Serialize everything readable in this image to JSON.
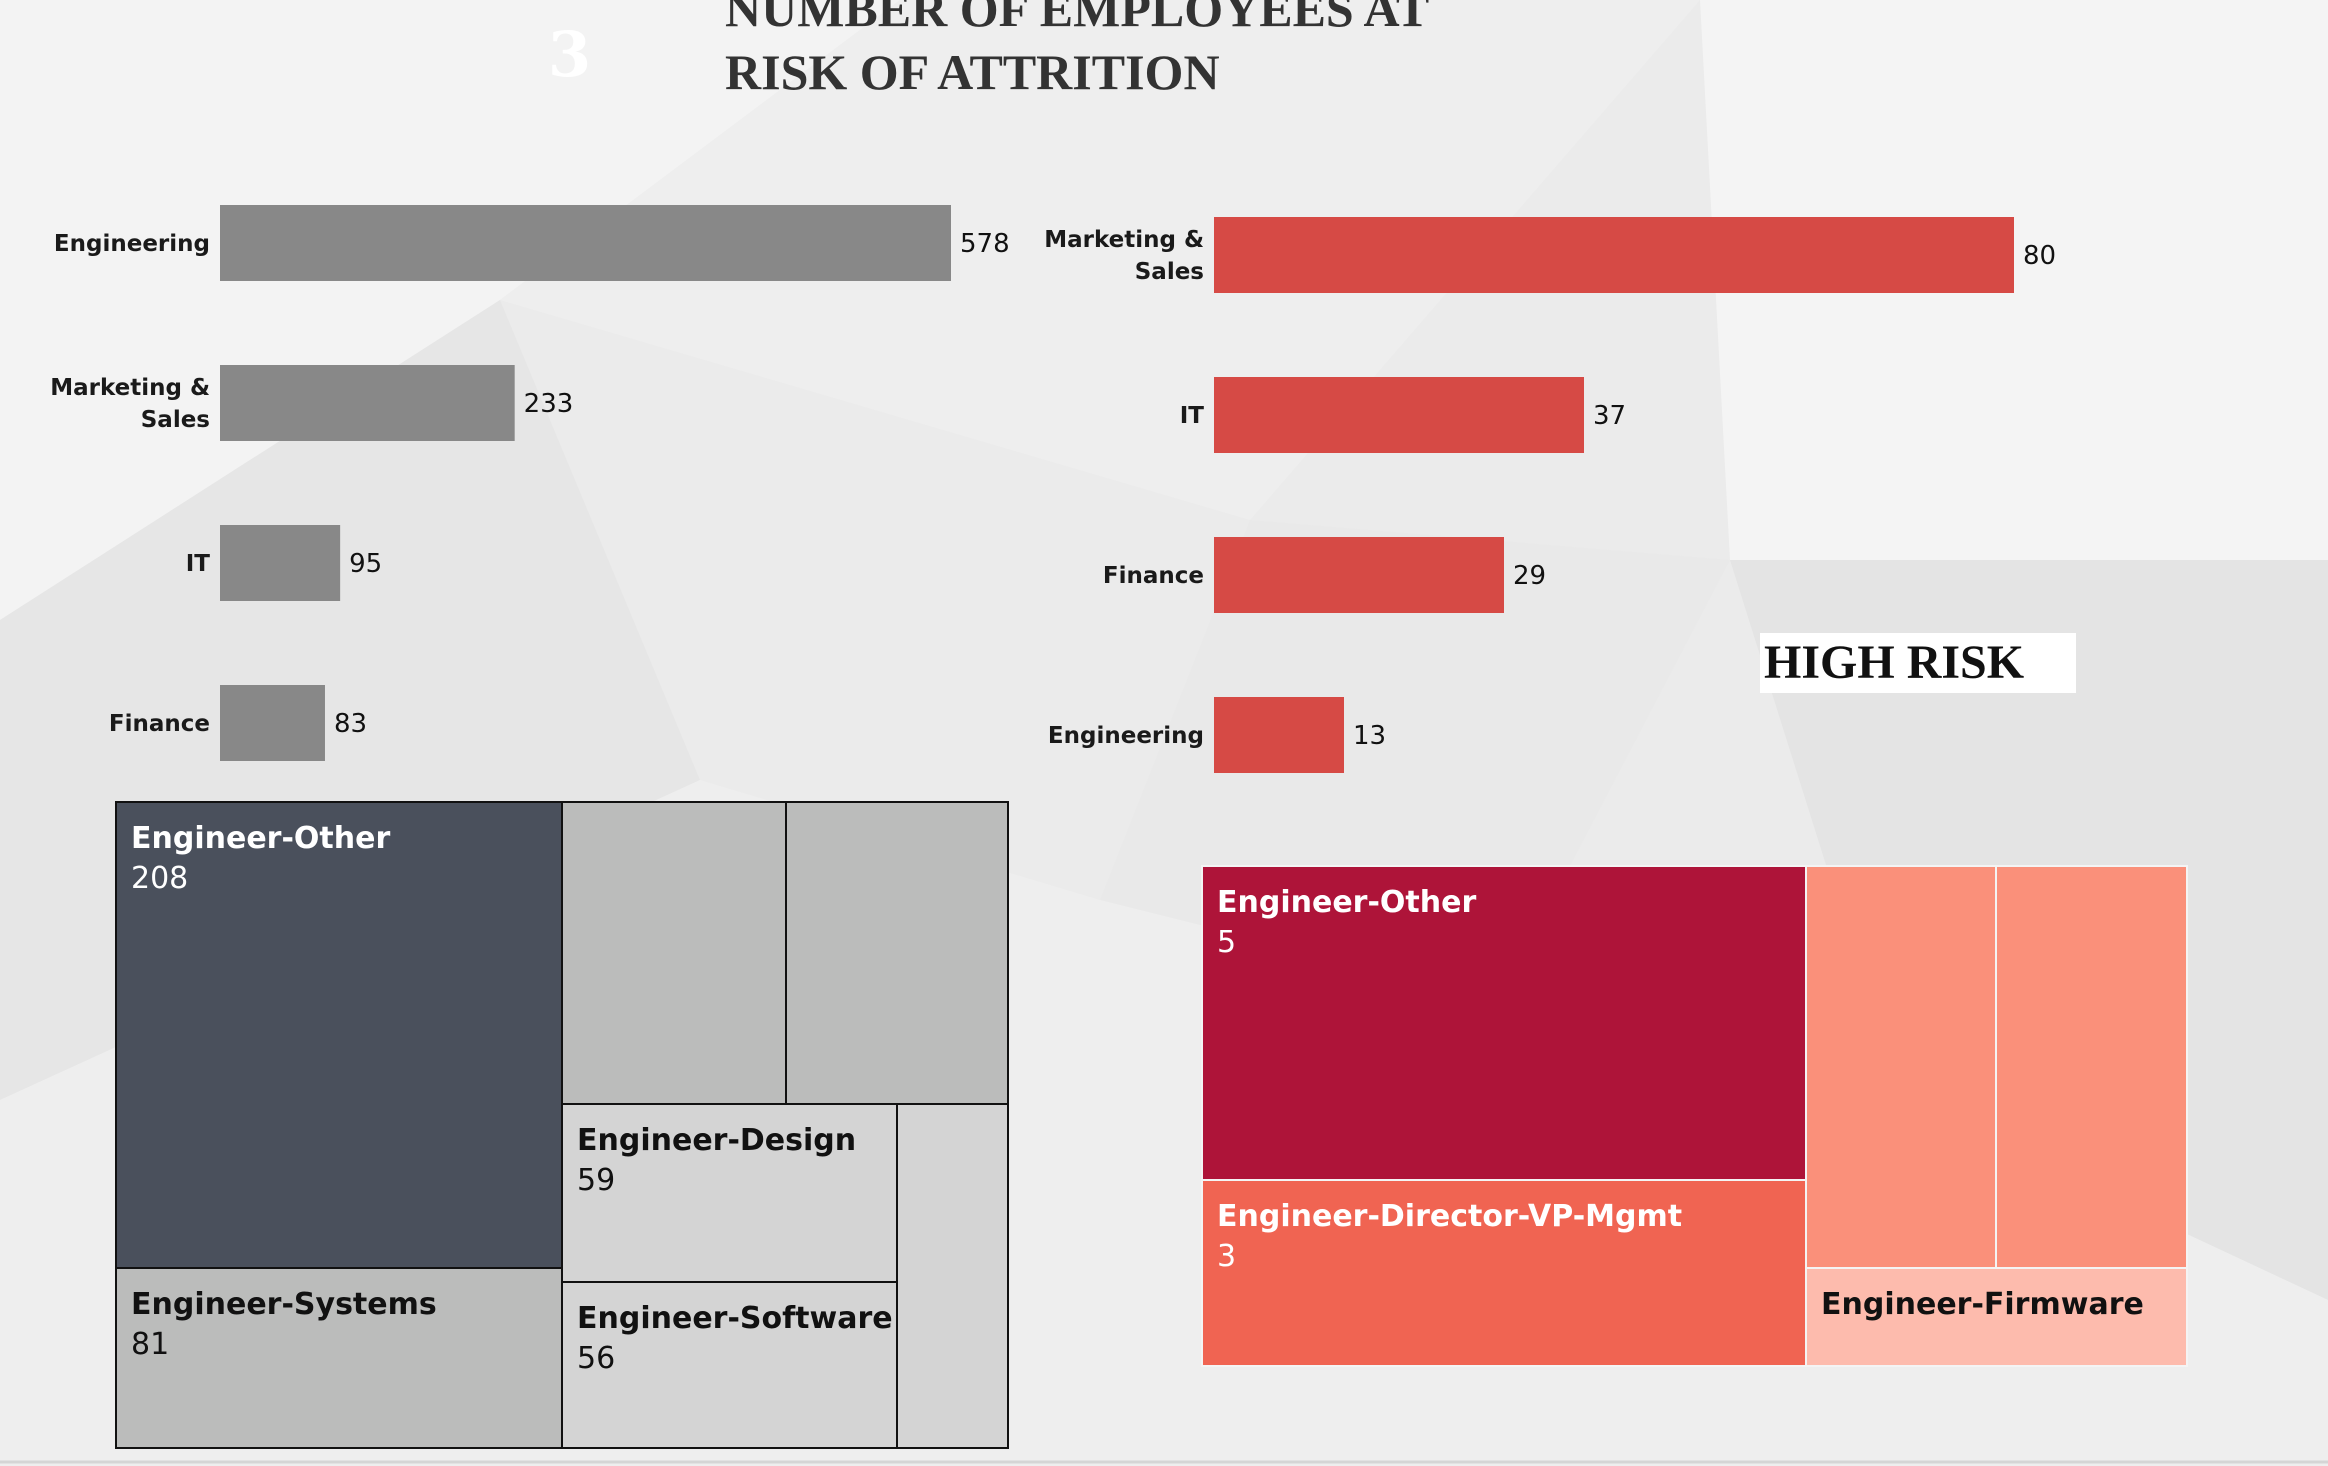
{
  "header": {
    "page_number": "3",
    "title_line1": "NUMBER OF EMPLOYEES AT",
    "title_line2": "RISK OF ATTRITION",
    "high_risk_label": "HIGH RISK"
  },
  "colors": {
    "all_bar": "#888888",
    "risk_bar": "#d64a45",
    "all_tree_dark": "#4a505c",
    "all_tree_mid": "#bbbcbb",
    "all_tree_light": "#d4d4d4",
    "risk_tree_dark": "#ae1439",
    "risk_tree_mid": "#f06452",
    "risk_tree_light": "#fa907a",
    "risk_tree_pale": "#fdbbad"
  },
  "chart_data": [
    {
      "type": "bar",
      "orientation": "horizontal",
      "categories": [
        "Engineering",
        "Marketing & Sales",
        "IT",
        "Finance"
      ],
      "values": [
        578,
        233,
        95,
        83
      ],
      "xlim": [
        0,
        578
      ]
    },
    {
      "type": "bar",
      "orientation": "horizontal",
      "categories": [
        "Marketing & Sales",
        "IT",
        "Finance",
        "Engineering"
      ],
      "values": [
        80,
        37,
        29,
        13
      ],
      "xlim": [
        0,
        80
      ]
    },
    {
      "type": "treemap",
      "items": [
        {
          "label": "Engineer-Other",
          "value": 208
        },
        {
          "label": "Engineer-Systems",
          "value": 81
        },
        {
          "label": "Engineer-Design",
          "value": 59
        },
        {
          "label": "Engineer-Software",
          "value": 56
        },
        {
          "label": "",
          "value": null
        },
        {
          "label": "",
          "value": null
        },
        {
          "label": "",
          "value": null
        }
      ]
    },
    {
      "type": "treemap",
      "items": [
        {
          "label": "Engineer-Other",
          "value": 5
        },
        {
          "label": "Engineer-Director-VP-Mgmt",
          "value": 3
        },
        {
          "label": "Engineer-Firmware",
          "value": null
        },
        {
          "label": "",
          "value": null
        },
        {
          "label": "",
          "value": null
        }
      ]
    }
  ]
}
